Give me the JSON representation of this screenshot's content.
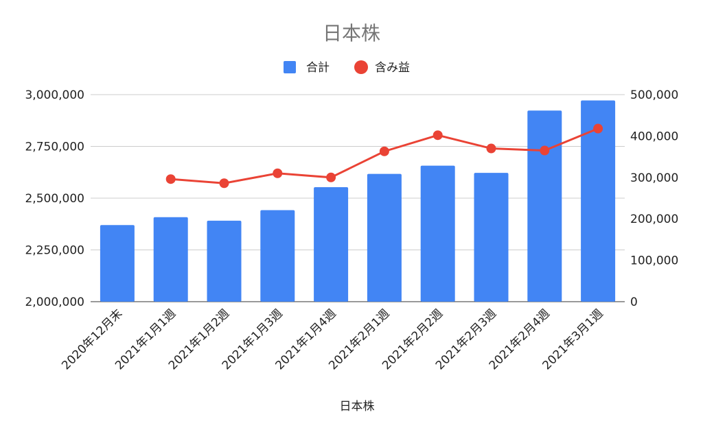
{
  "chart_data": {
    "type": "bar",
    "title": "日本株",
    "xlabel": "日本株",
    "ylabel": "",
    "categories": [
      "2020年12月末",
      "2021年1月1週",
      "2021年1月2週",
      "2021年1月3週",
      "2021年1月4週",
      "2021年2月1週",
      "2021年2月2週",
      "2021年2月3週",
      "2021年2月4週",
      "2021年3月1週"
    ],
    "series": [
      {
        "name": "合計",
        "type": "bar",
        "axis": "left",
        "color": "#4285f4",
        "values": [
          2370000,
          2408000,
          2391000,
          2442000,
          2553000,
          2617000,
          2657000,
          2622000,
          2923000,
          2972000
        ]
      },
      {
        "name": "含み益",
        "type": "line",
        "axis": "right",
        "color": "#ea4335",
        "values": [
          null,
          296000,
          286000,
          310000,
          300000,
          363000,
          402000,
          370000,
          365000,
          418000
        ]
      }
    ],
    "ylim_left": [
      2000000,
      3000000
    ],
    "ylim_right": [
      0,
      500000
    ],
    "yticks_left": [
      "2,000,000",
      "2,250,000",
      "2,500,000",
      "2,750,000",
      "3,000,000"
    ],
    "yticks_right": [
      "0",
      "100,000",
      "200,000",
      "300,000",
      "400,000",
      "500,000"
    ],
    "legend_position": "top",
    "grid": true
  }
}
